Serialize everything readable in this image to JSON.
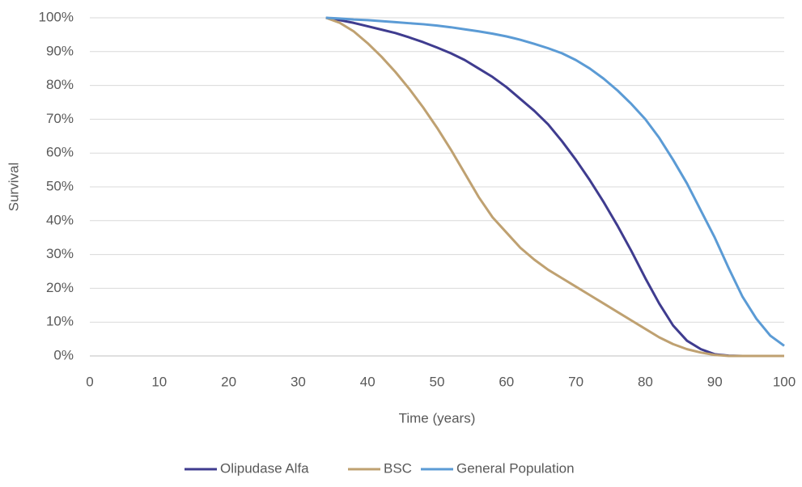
{
  "chart_data": {
    "type": "line",
    "y_label": "Survival",
    "x_label": "Time (years)",
    "x": [
      34,
      36,
      38,
      40,
      42,
      44,
      46,
      48,
      50,
      52,
      54,
      56,
      58,
      60,
      62,
      64,
      66,
      68,
      70,
      72,
      74,
      76,
      78,
      80,
      82,
      84,
      86,
      88,
      90,
      92,
      94,
      96,
      98,
      100
    ],
    "series": [
      {
        "name": "Olipudase Alfa",
        "color": "#3f3c8f",
        "values": [
          100,
          99.3,
          98.5,
          97.5,
          96.5,
          95.5,
          94.2,
          92.8,
          91.2,
          89.5,
          87.5,
          85,
          82.5,
          79.5,
          76,
          72.5,
          68.5,
          63.5,
          58,
          52,
          45.5,
          38.5,
          31,
          23,
          15.5,
          9,
          4.5,
          2,
          0.5,
          0.1,
          0,
          0,
          0,
          0
        ]
      },
      {
        "name": "BSC",
        "color": "#bfa171",
        "values": [
          100,
          98.5,
          96,
          92.5,
          88.5,
          84,
          79,
          73.5,
          67.5,
          61,
          54,
          47,
          41,
          36.5,
          32,
          28.5,
          25.5,
          23,
          20.5,
          18,
          15.5,
          13,
          10.5,
          8,
          5.5,
          3.5,
          2,
          1,
          0.3,
          0,
          0,
          0,
          0,
          0
        ]
      },
      {
        "name": "General Population",
        "color": "#5b9bd5",
        "values": [
          100,
          99.8,
          99.5,
          99.3,
          99,
          98.7,
          98.4,
          98.1,
          97.7,
          97.2,
          96.6,
          96,
          95.3,
          94.5,
          93.5,
          92.3,
          91,
          89.5,
          87.5,
          85,
          82,
          78.5,
          74.5,
          70,
          64.5,
          58,
          51,
          43,
          35,
          26,
          17.5,
          11,
          6,
          3
        ]
      }
    ],
    "xlim": [
      0,
      100
    ],
    "xticks": [
      0,
      10,
      20,
      30,
      40,
      50,
      60,
      70,
      80,
      90,
      100
    ],
    "ylim": [
      0,
      100
    ],
    "yticks": [
      {
        "value": 0,
        "label": "0%"
      },
      {
        "value": 10,
        "label": "10%"
      },
      {
        "value": 20,
        "label": "20%"
      },
      {
        "value": 30,
        "label": "30%"
      },
      {
        "value": 40,
        "label": "40%"
      },
      {
        "value": 50,
        "label": "50%"
      },
      {
        "value": 60,
        "label": "60%"
      },
      {
        "value": 70,
        "label": "70%"
      },
      {
        "value": 80,
        "label": "80%"
      },
      {
        "value": 90,
        "label": "90%"
      },
      {
        "value": 100,
        "label": "100%"
      }
    ],
    "grid": true,
    "legend": "bottom"
  }
}
